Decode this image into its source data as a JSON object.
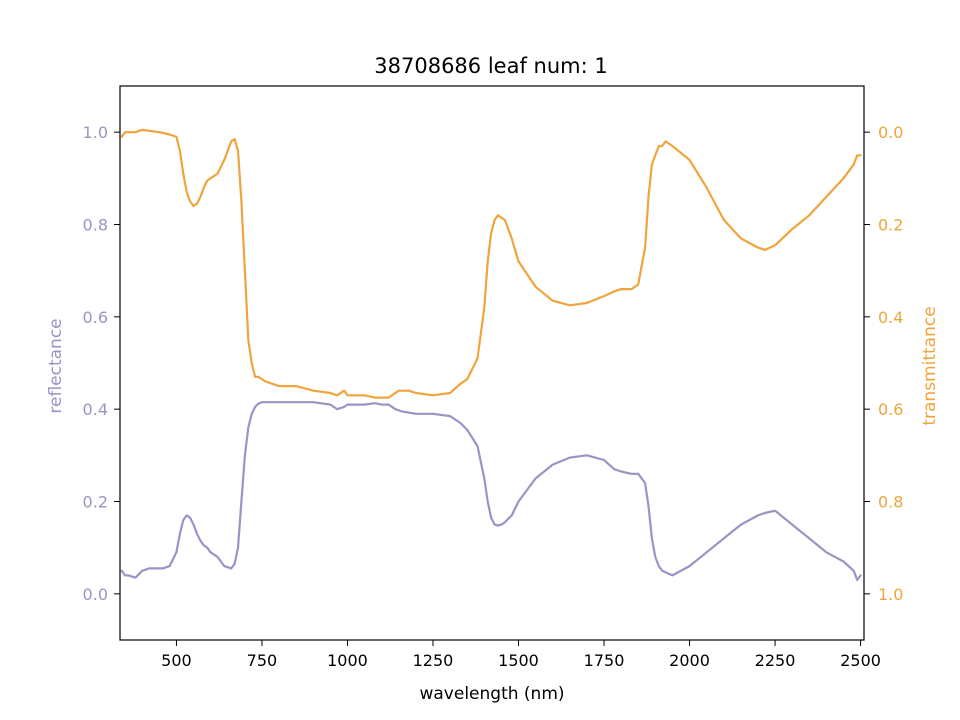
{
  "chart_data": {
    "type": "line",
    "title": "38708686 leaf num: 1",
    "xlabel": "wavelength (nm)",
    "ylabel_left": "reflectance",
    "ylabel_right": "transmittance",
    "xlim": [
      335,
      2510
    ],
    "ylim_left": [
      -0.1,
      1.1
    ],
    "ylim_right": [
      1.1,
      -0.1
    ],
    "right_axis_inverted": true,
    "x_ticks": [
      500,
      750,
      1000,
      1250,
      1500,
      1750,
      2000,
      2250,
      2500
    ],
    "y_ticks_left": [
      0.0,
      0.2,
      0.4,
      0.6,
      0.8,
      1.0
    ],
    "y_ticks_right": [
      0.0,
      0.2,
      0.4,
      0.6,
      0.8,
      1.0
    ],
    "grid": false,
    "colors": {
      "reflectance": "#9a94c6",
      "transmittance": "#f0a43c",
      "axis": "#000000"
    },
    "series": [
      {
        "axis": "left",
        "x": [
          340,
          350,
          360,
          380,
          400,
          420,
          440,
          460,
          480,
          500,
          510,
          520,
          530,
          540,
          550,
          560,
          570,
          580,
          590,
          600,
          620,
          640,
          660,
          670,
          680,
          690,
          700,
          710,
          720,
          730,
          740,
          750,
          760,
          780,
          800,
          850,
          900,
          950,
          970,
          990,
          1000,
          1050,
          1080,
          1100,
          1120,
          1140,
          1160,
          1200,
          1250,
          1300,
          1330,
          1350,
          1380,
          1400,
          1410,
          1420,
          1430,
          1440,
          1450,
          1460,
          1480,
          1500,
          1550,
          1600,
          1650,
          1700,
          1750,
          1780,
          1800,
          1830,
          1850,
          1870,
          1880,
          1890,
          1900,
          1910,
          1920,
          1950,
          2000,
          2050,
          2100,
          2150,
          2200,
          2220,
          2250,
          2300,
          2350,
          2400,
          2450,
          2480,
          2490,
          2500
        ],
        "y": [
          0.05,
          0.04,
          0.04,
          0.035,
          0.05,
          0.055,
          0.055,
          0.055,
          0.06,
          0.09,
          0.13,
          0.16,
          0.17,
          0.165,
          0.15,
          0.13,
          0.115,
          0.105,
          0.1,
          0.09,
          0.08,
          0.06,
          0.055,
          0.065,
          0.1,
          0.2,
          0.3,
          0.36,
          0.39,
          0.405,
          0.412,
          0.415,
          0.415,
          0.415,
          0.415,
          0.415,
          0.415,
          0.41,
          0.4,
          0.405,
          0.41,
          0.41,
          0.413,
          0.41,
          0.41,
          0.4,
          0.395,
          0.39,
          0.39,
          0.385,
          0.37,
          0.355,
          0.32,
          0.25,
          0.2,
          0.165,
          0.15,
          0.148,
          0.15,
          0.155,
          0.17,
          0.2,
          0.25,
          0.28,
          0.295,
          0.3,
          0.29,
          0.27,
          0.265,
          0.26,
          0.26,
          0.24,
          0.19,
          0.12,
          0.08,
          0.06,
          0.05,
          0.04,
          0.06,
          0.09,
          0.12,
          0.15,
          0.17,
          0.175,
          0.18,
          0.15,
          0.12,
          0.09,
          0.07,
          0.05,
          0.03,
          0.04
        ]
      },
      {
        "axis": "right",
        "x": [
          340,
          350,
          360,
          380,
          400,
          450,
          480,
          500,
          510,
          520,
          530,
          540,
          550,
          560,
          570,
          580,
          590,
          600,
          620,
          640,
          650,
          660,
          670,
          680,
          690,
          700,
          710,
          720,
          730,
          740,
          750,
          760,
          800,
          850,
          900,
          950,
          970,
          990,
          1000,
          1050,
          1080,
          1100,
          1120,
          1130,
          1150,
          1180,
          1200,
          1250,
          1300,
          1330,
          1350,
          1380,
          1400,
          1410,
          1420,
          1430,
          1440,
          1450,
          1460,
          1480,
          1500,
          1550,
          1600,
          1650,
          1700,
          1750,
          1780,
          1800,
          1830,
          1850,
          1870,
          1880,
          1890,
          1900,
          1910,
          1920,
          1930,
          1950,
          2000,
          2050,
          2100,
          2150,
          2200,
          2220,
          2250,
          2300,
          2350,
          2400,
          2450,
          2480,
          2490,
          2500
        ],
        "y": [
          0.01,
          0.0,
          0.0,
          0.0,
          -0.005,
          0.0,
          0.005,
          0.01,
          0.04,
          0.09,
          0.13,
          0.15,
          0.16,
          0.155,
          0.14,
          0.12,
          0.105,
          0.1,
          0.09,
          0.06,
          0.04,
          0.02,
          0.015,
          0.04,
          0.15,
          0.3,
          0.45,
          0.5,
          0.53,
          0.53,
          0.535,
          0.54,
          0.55,
          0.55,
          0.56,
          0.565,
          0.57,
          0.56,
          0.57,
          0.57,
          0.575,
          0.575,
          0.575,
          0.57,
          0.56,
          0.56,
          0.565,
          0.57,
          0.565,
          0.545,
          0.535,
          0.49,
          0.38,
          0.28,
          0.22,
          0.19,
          0.18,
          0.185,
          0.19,
          0.23,
          0.28,
          0.335,
          0.365,
          0.375,
          0.37,
          0.355,
          0.345,
          0.34,
          0.34,
          0.33,
          0.25,
          0.14,
          0.07,
          0.05,
          0.03,
          0.03,
          0.02,
          0.03,
          0.06,
          0.12,
          0.19,
          0.23,
          0.25,
          0.255,
          0.245,
          0.21,
          0.18,
          0.14,
          0.1,
          0.07,
          0.05,
          0.05
        ]
      }
    ]
  }
}
